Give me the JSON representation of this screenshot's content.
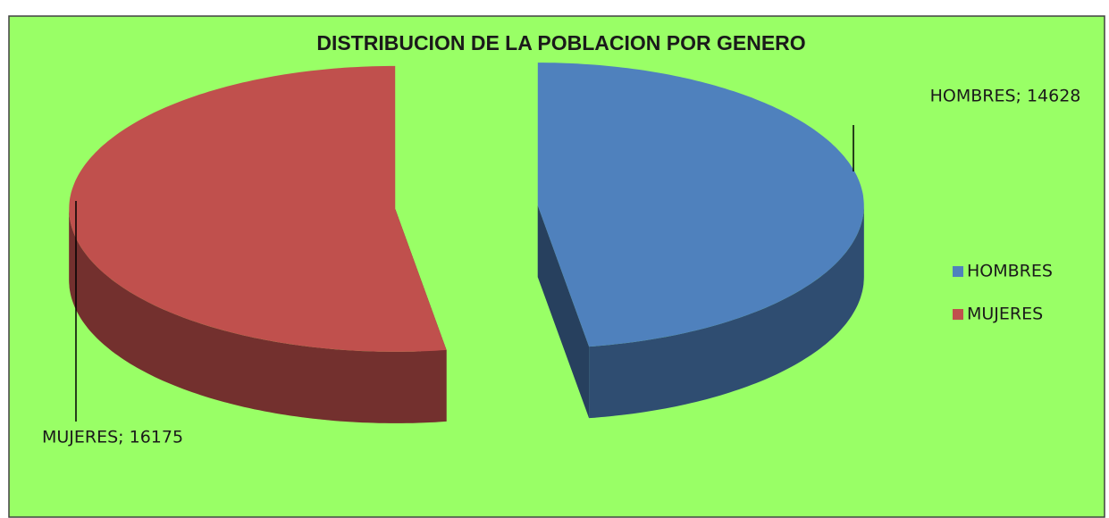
{
  "chart_data": {
    "type": "pie3d",
    "title": "DISTRIBUCION DE LA POBLACION POR GENERO",
    "categories": [
      "HOMBRES",
      "MUJERES"
    ],
    "values": [
      14628,
      16175
    ],
    "value_labels": [
      "HOMBRES; 14628",
      "MUJERES; 16175"
    ],
    "colors": [
      "#4f81bd",
      "#c0504d"
    ],
    "exploded": true,
    "legend": "right"
  }
}
